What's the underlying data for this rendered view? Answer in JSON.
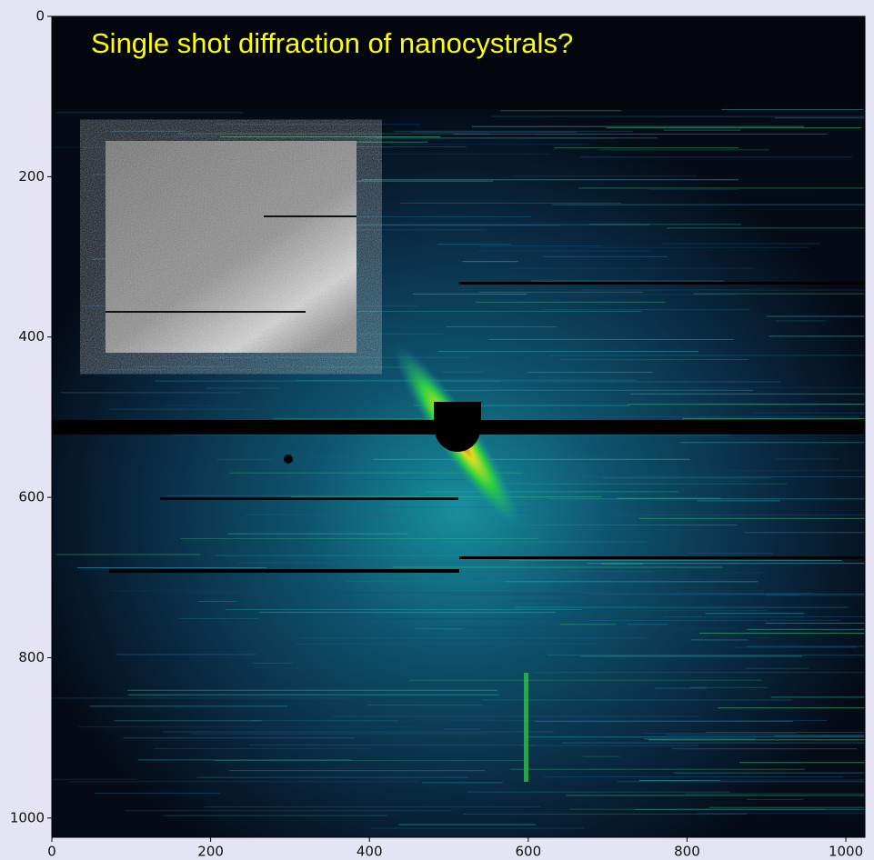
{
  "chart_data": {
    "type": "image",
    "title": "Single shot diffraction of nanocystrals?",
    "xlim": [
      0,
      1024
    ],
    "ylim": [
      0,
      1024
    ],
    "y_inverted": true,
    "xticks": [
      0,
      200,
      400,
      600,
      800,
      1000
    ],
    "yticks": [
      0,
      200,
      400,
      600,
      800,
      1000
    ],
    "title_color": "#ffff00"
  }
}
